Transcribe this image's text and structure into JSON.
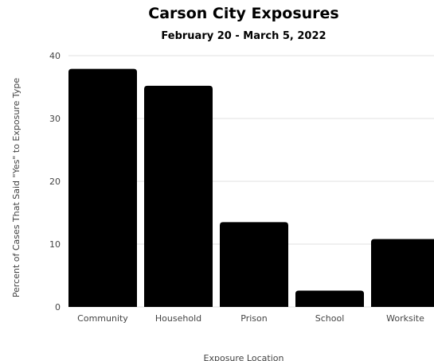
{
  "chart_data": {
    "type": "bar",
    "title": "Carson City Exposures",
    "subtitle": "February 20 - March 5, 2022",
    "categories": [
      "Community",
      "Household",
      "Prison",
      "School",
      "Worksite"
    ],
    "values": [
      37.9,
      35.2,
      13.5,
      2.6,
      10.8
    ],
    "xlabel": "Exposure Location",
    "ylabel": "Percent of Cases That Said \"Yes\" to Exposure Type",
    "ylim": [
      0,
      40
    ],
    "yticks": [
      0,
      10,
      20,
      30,
      40
    ],
    "grid": true,
    "bar_color": "#000000",
    "grid_color": "#e0e0e0"
  }
}
